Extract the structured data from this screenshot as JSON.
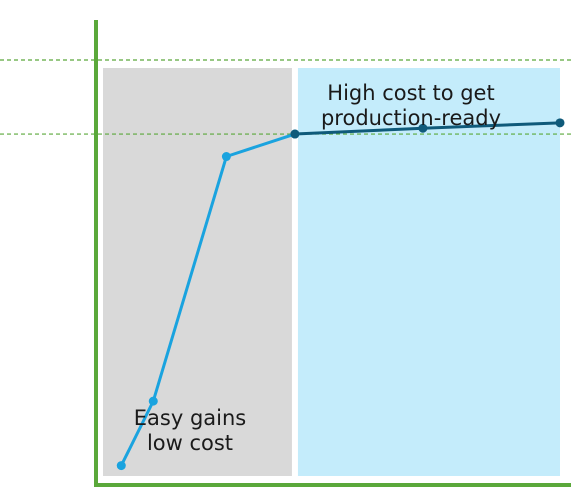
{
  "chart_data": {
    "type": "line",
    "title": "",
    "xlabel": "",
    "ylabel": "",
    "grid": false,
    "legend": "none",
    "reference_lines": [
      {
        "y": 1.0,
        "style": "dashed",
        "color": "#5aa83a"
      },
      {
        "y": 0.822,
        "style": "dashed",
        "color": "#5aa83a"
      }
    ],
    "regions": [
      {
        "name": "easy",
        "x_range": [
          0,
          0.42
        ],
        "color": "#d9d9d9",
        "label_lines": [
          "Easy gains",
          "low cost"
        ]
      },
      {
        "name": "hard",
        "x_range": [
          0.42,
          1.0
        ],
        "color": "#c4ecfb",
        "label_lines": [
          "High cost to get",
          "production-ready"
        ]
      }
    ],
    "series": [
      {
        "color": "#1aa3df",
        "points": [
          [
            0.04,
            0.025
          ],
          [
            0.11,
            0.18
          ],
          [
            0.27,
            0.768
          ],
          [
            0.42,
            0.822
          ]
        ]
      },
      {
        "color": "#0f5a7a",
        "points": [
          [
            0.42,
            0.822
          ],
          [
            0.7,
            0.836
          ],
          [
            1.0,
            0.849
          ]
        ]
      }
    ],
    "axis_color": "#5aa83a",
    "xlim": [
      0,
      1
    ],
    "ylim": [
      0,
      1
    ]
  }
}
